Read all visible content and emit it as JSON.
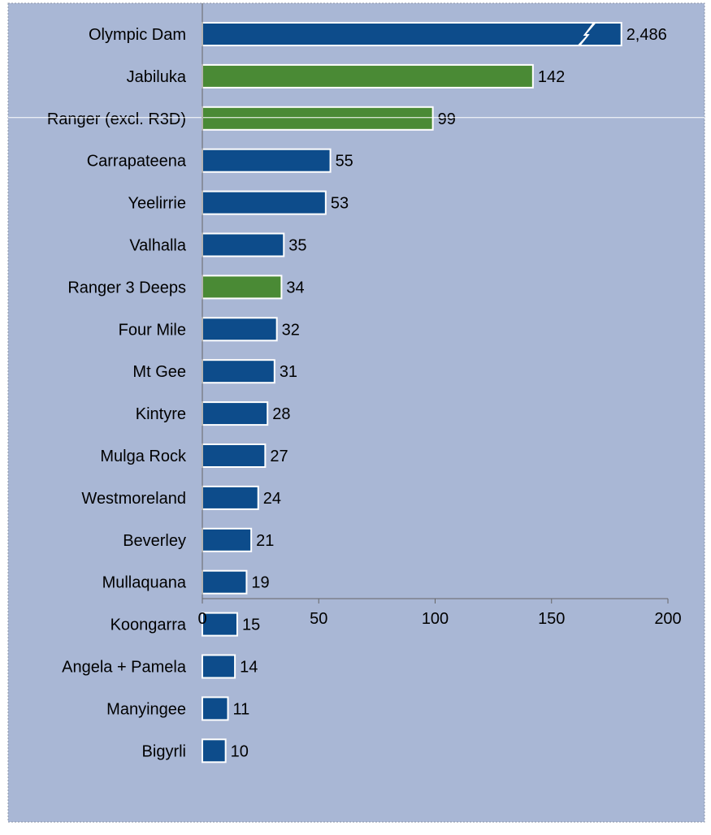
{
  "chart_data": {
    "type": "bar",
    "orientation": "horizontal",
    "categories": [
      "Olympic Dam",
      "Jabiluka",
      "Ranger (excl. R3D)",
      "Carrapateena",
      "Yeelirrie",
      "Valhalla",
      "Ranger 3 Deeps",
      "Four Mile",
      "Mt Gee",
      "Kintyre",
      "Mulga Rock",
      "Westmoreland",
      "Beverley",
      "Mullaquana",
      "Koongarra",
      "Angela + Pamela",
      "Manyingee",
      "Bigyrli"
    ],
    "values": [
      2486,
      142,
      99,
      55,
      53,
      35,
      34,
      32,
      31,
      28,
      27,
      24,
      21,
      19,
      15,
      14,
      11,
      10
    ],
    "value_labels": [
      "2,486",
      "142",
      "99",
      "55",
      "53",
      "35",
      "34",
      "32",
      "31",
      "28",
      "27",
      "24",
      "21",
      "19",
      "15",
      "14",
      "11",
      "10"
    ],
    "bar_colors": [
      "#0d4c8b",
      "#4a8a35",
      "#4a8a35",
      "#0d4c8b",
      "#0d4c8b",
      "#0d4c8b",
      "#4a8a35",
      "#0d4c8b",
      "#0d4c8b",
      "#0d4c8b",
      "#0d4c8b",
      "#0d4c8b",
      "#0d4c8b",
      "#0d4c8b",
      "#0d4c8b",
      "#0d4c8b",
      "#0d4c8b",
      "#0d4c8b"
    ],
    "broken_axis": {
      "category": "Olympic Dam",
      "displayed_value": 180
    },
    "xlim": [
      0,
      200
    ],
    "xticks": [
      0,
      50,
      100,
      150,
      200
    ],
    "xlabel": "",
    "ylabel": "",
    "title": "",
    "grid": false,
    "legend": "none",
    "background_color": "#a9b7d5"
  }
}
